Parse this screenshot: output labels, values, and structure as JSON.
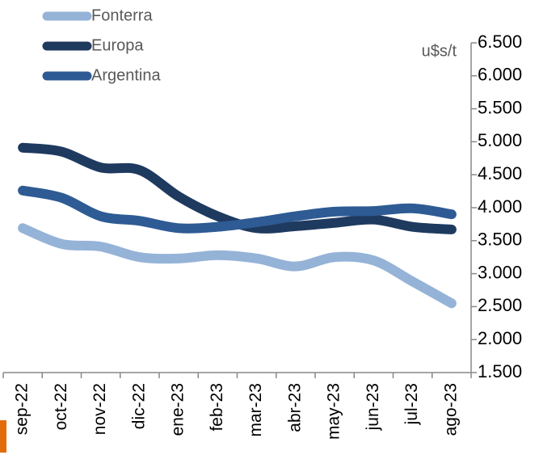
{
  "chart_data": {
    "type": "line",
    "y_label": "u$s/t",
    "categories": [
      "sep-22",
      "oct-22",
      "nov-22",
      "dic-22",
      "ene-23",
      "feb-23",
      "mar-23",
      "abr-23",
      "may-23",
      "jun-23",
      "jul-23",
      "ago-23"
    ],
    "series": [
      {
        "name": "Fonterra",
        "color": "#95b3d7",
        "values": [
          3690,
          3450,
          3410,
          3250,
          3230,
          3280,
          3230,
          3110,
          3250,
          3200,
          2880,
          2550
        ]
      },
      {
        "name": "Europa",
        "color": "#1f3a5f",
        "values": [
          4910,
          4850,
          4610,
          4570,
          4170,
          3870,
          3690,
          3720,
          3770,
          3820,
          3710,
          3670
        ]
      },
      {
        "name": "Argentina",
        "color": "#2e5b94",
        "values": [
          4260,
          4150,
          3870,
          3800,
          3690,
          3710,
          3780,
          3870,
          3940,
          3950,
          3990,
          3900
        ]
      }
    ],
    "ylim": [
      1500,
      6500
    ],
    "yticks": [
      {
        "value": 1500,
        "label": "1.500"
      },
      {
        "value": 2000,
        "label": "2.000"
      },
      {
        "value": 2500,
        "label": "2.500"
      },
      {
        "value": 3000,
        "label": "3.000"
      },
      {
        "value": 3500,
        "label": "3.500"
      },
      {
        "value": 4000,
        "label": "4.000"
      },
      {
        "value": 4500,
        "label": "4.500"
      },
      {
        "value": 5000,
        "label": "5.000"
      },
      {
        "value": 5500,
        "label": "5.500"
      },
      {
        "value": 6000,
        "label": "6.000"
      },
      {
        "value": 6500,
        "label": "6.500"
      }
    ],
    "legend": "top-left"
  }
}
